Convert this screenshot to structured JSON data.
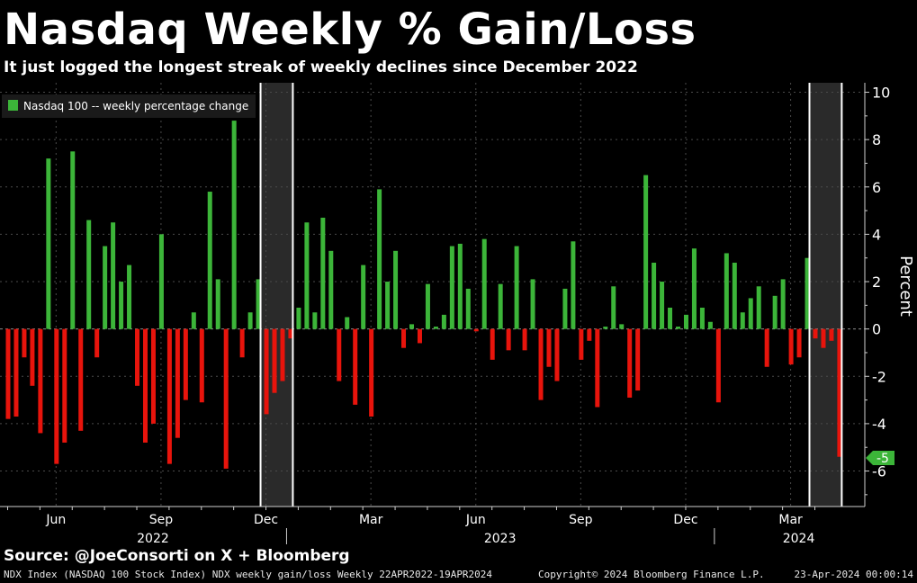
{
  "title": "Nasdaq Weekly % Gain/Loss",
  "subtitle": "It just logged the longest streak of weekly declines since December 2022",
  "source": "Source: @JoeConsorti on X + Bloomberg",
  "footer": {
    "left": "NDX Index (NASDAQ 100 Stock Index) NDX weekly gain/loss  Weekly 22APR2022-19APR2024",
    "middle": "Copyright© 2024 Bloomberg Finance L.P.",
    "right": "23-Apr-2024 00:00:14"
  },
  "colors": {
    "positive": "#3cb539",
    "negative": "#e8140c",
    "highlight_band": "#2a2a2a",
    "grid": "#4a4a4a"
  },
  "chart_data": {
    "type": "bar",
    "title": "Nasdaq Weekly % Gain/Loss",
    "ylabel": "Percent",
    "ylim": [
      -7.5,
      10.4
    ],
    "yticks": [
      10,
      8,
      6,
      4,
      2,
      0,
      -2,
      -4,
      -6
    ],
    "grid": true,
    "legend": {
      "position": "top-left",
      "label": "Nasdaq 100 -- weekly percentage change"
    },
    "last_value_label": "-5",
    "x_axis": {
      "month_labels": [
        {
          "label": "Jun",
          "week": 6
        },
        {
          "label": "Sep",
          "week": 19
        },
        {
          "label": "Dec",
          "week": 32
        },
        {
          "label": "Mar",
          "week": 45
        },
        {
          "label": "Jun",
          "week": 58
        },
        {
          "label": "Sep",
          "week": 71
        },
        {
          "label": "Dec",
          "week": 84
        },
        {
          "label": "Mar",
          "week": 97
        }
      ],
      "year_labels": [
        {
          "label": "2022",
          "week": 18
        },
        {
          "label": "2023",
          "week": 61
        },
        {
          "label": "2024",
          "week": 98
        }
      ],
      "year_dividers": [
        35,
        88
      ]
    },
    "highlight_ranges": [
      [
        32,
        36
      ],
      [
        100,
        104
      ]
    ],
    "start_week": "22APR2022",
    "end_week": "19APR2024",
    "values": [
      -3.8,
      -3.7,
      -1.2,
      -2.4,
      -4.4,
      7.2,
      -5.7,
      -4.8,
      7.5,
      -4.3,
      4.6,
      -1.2,
      3.5,
      4.5,
      2.0,
      2.7,
      -2.4,
      -4.8,
      -4.0,
      4.0,
      -5.7,
      -4.6,
      -3.0,
      0.7,
      -3.1,
      5.8,
      2.1,
      -5.9,
      8.8,
      -1.2,
      0.7,
      2.1,
      -3.6,
      -2.7,
      -2.2,
      -0.4,
      0.9,
      4.5,
      0.7,
      4.7,
      3.3,
      -2.2,
      0.5,
      -3.2,
      2.7,
      -3.7,
      5.9,
      2.0,
      3.3,
      -0.8,
      0.2,
      -0.6,
      1.9,
      0.1,
      0.6,
      3.5,
      3.6,
      1.7,
      -0.1,
      3.8,
      -1.3,
      1.9,
      -0.9,
      3.5,
      -0.9,
      2.1,
      -3.0,
      -1.6,
      -2.2,
      1.7,
      3.7,
      -1.3,
      -0.5,
      -3.3,
      0.1,
      1.8,
      0.2,
      -2.9,
      -2.6,
      6.5,
      2.8,
      2.0,
      0.9,
      0.1,
      0.6,
      3.4,
      0.9,
      0.3,
      -3.1,
      3.2,
      2.8,
      0.7,
      1.3,
      1.8,
      -1.6,
      1.4,
      2.1,
      -1.5,
      -1.2,
      3.0,
      -0.4,
      -0.8,
      -0.5,
      -5.4
    ]
  }
}
